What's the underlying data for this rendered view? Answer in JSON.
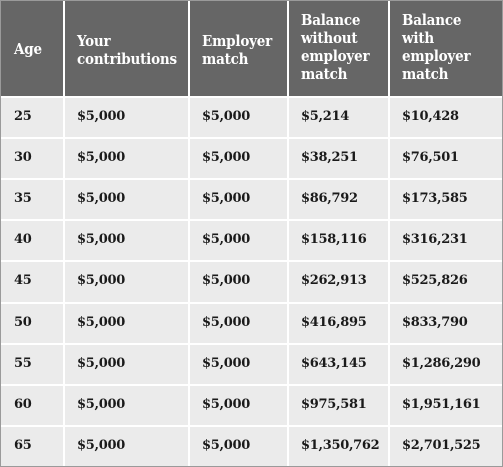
{
  "chart_data": {
    "type": "table",
    "columns": [
      "Age",
      "Your\ncontributions",
      "Employer\nmatch",
      "Balance\nwithout\nemployer\nmatch",
      "Balance\nwith\nemployer\nmatch"
    ],
    "rows": [
      [
        "25",
        "$5,000",
        "$5,000",
        "$5,214",
        "$10,428"
      ],
      [
        "30",
        "$5,000",
        "$5,000",
        "$38,251",
        "$76,501"
      ],
      [
        "35",
        "$5,000",
        "$5,000",
        "$86,792",
        "$173,585"
      ],
      [
        "40",
        "$5,000",
        "$5,000",
        "$158,116",
        "$316,231"
      ],
      [
        "45",
        "$5,000",
        "$5,000",
        "$262,913",
        "$525,826"
      ],
      [
        "50",
        "$5,000",
        "$5,000",
        "$416,895",
        "$833,790"
      ],
      [
        "55",
        "$5,000",
        "$5,000",
        "$643,145",
        "$1,286,290"
      ],
      [
        "60",
        "$5,000",
        "$5,000",
        "$975,581",
        "$1,951,161"
      ],
      [
        "65",
        "$5,000",
        "$5,000",
        "$1,350,762",
        "$2,701,525"
      ]
    ]
  },
  "colors": {
    "header_bg": "#666666",
    "header_text": "#ffffff",
    "body_bg": "#ebebeb",
    "body_text": "#1a1a1a",
    "divider": "#ffffff"
  }
}
